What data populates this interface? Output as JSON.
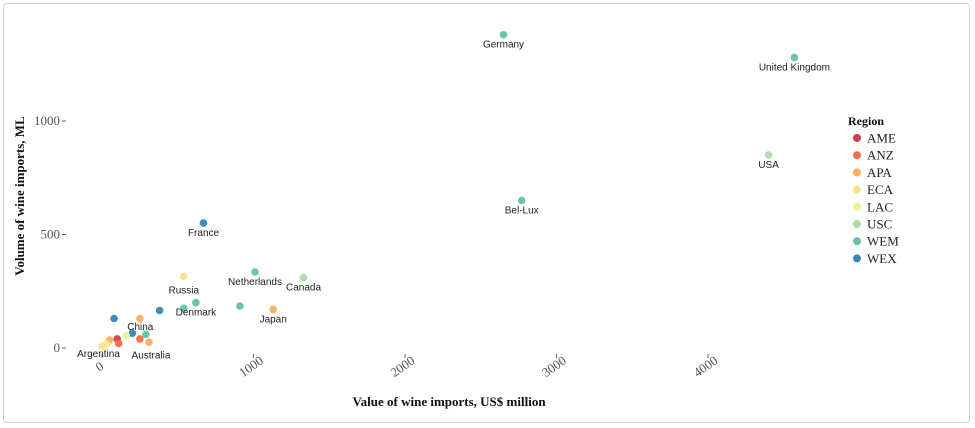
{
  "chart_data": {
    "type": "scatter",
    "xlabel": "Value of wine imports, US$ million",
    "ylabel": "Volume of wine imports, ML",
    "xlim": [
      -150,
      4850
    ],
    "ylim": [
      -50,
      1420
    ],
    "x_ticks": [
      0,
      1000,
      2000,
      3000,
      4000
    ],
    "x_tick_labels": [
      "0",
      "1000",
      "2000",
      "3000",
      "4000"
    ],
    "y_ticks": [
      0,
      500,
      1000
    ],
    "y_tick_labels": [
      "0",
      "500",
      "1000"
    ],
    "grid": false,
    "legend": {
      "title": "Region",
      "placement": "right",
      "entries": [
        {
          "name": "AME",
          "color": "#d53e4f"
        },
        {
          "name": "ANZ",
          "color": "#f46d43"
        },
        {
          "name": "APA",
          "color": "#fdae61"
        },
        {
          "name": "ECA",
          "color": "#fee08b"
        },
        {
          "name": "LAC",
          "color": "#e6f598"
        },
        {
          "name": "USC",
          "color": "#abdda4"
        },
        {
          "name": "WEM",
          "color": "#66c2a5"
        },
        {
          "name": "WEX",
          "color": "#3288bd"
        }
      ]
    },
    "points": [
      {
        "x": 2650,
        "y": 1380,
        "region": "WEM",
        "label": "Germany"
      },
      {
        "x": 4570,
        "y": 1280,
        "region": "WEM",
        "label": "United Kingdom"
      },
      {
        "x": 4400,
        "y": 850,
        "region": "USC",
        "label": "USA"
      },
      {
        "x": 2770,
        "y": 650,
        "region": "WEM",
        "label": "Bel-Lux"
      },
      {
        "x": 670,
        "y": 550,
        "region": "WEX",
        "label": "France"
      },
      {
        "x": 1010,
        "y": 335,
        "region": "WEM",
        "label": "Netherlands"
      },
      {
        "x": 1330,
        "y": 310,
        "region": "USC",
        "label": "Canada"
      },
      {
        "x": 540,
        "y": 315,
        "region": "ECA",
        "label": "Russia"
      },
      {
        "x": 1130,
        "y": 170,
        "region": "APA",
        "label": "Japan"
      },
      {
        "x": 620,
        "y": 200,
        "region": "WEM",
        "label": "Denmark"
      },
      {
        "x": 540,
        "y": 175,
        "region": "WEM",
        "label": ""
      },
      {
        "x": 910,
        "y": 185,
        "region": "WEM",
        "label": ""
      },
      {
        "x": 380,
        "y": 165,
        "region": "WEX",
        "label": ""
      },
      {
        "x": 80,
        "y": 130,
        "region": "WEX",
        "label": ""
      },
      {
        "x": 250,
        "y": 130,
        "region": "APA",
        "label": ""
      },
      {
        "x": 200,
        "y": 65,
        "region": "WEX",
        "label": "China"
      },
      {
        "x": 290,
        "y": 60,
        "region": "WEM",
        "label": ""
      },
      {
        "x": 310,
        "y": 25,
        "region": "APA",
        "label": "Australia"
      },
      {
        "x": 250,
        "y": 40,
        "region": "ANZ",
        "label": ""
      },
      {
        "x": 100,
        "y": 40,
        "region": "AME",
        "label": ""
      },
      {
        "x": 110,
        "y": 20,
        "region": "ANZ",
        "label": ""
      },
      {
        "x": 160,
        "y": 55,
        "region": "LAC",
        "label": ""
      },
      {
        "x": 50,
        "y": 35,
        "region": "APA",
        "label": ""
      },
      {
        "x": 30,
        "y": 20,
        "region": "ECA",
        "label": ""
      },
      {
        "x": 10,
        "y": 5,
        "region": "LAC",
        "label": "Argentina"
      },
      {
        "x": 0,
        "y": 8,
        "region": "ECA",
        "label": ""
      }
    ]
  }
}
